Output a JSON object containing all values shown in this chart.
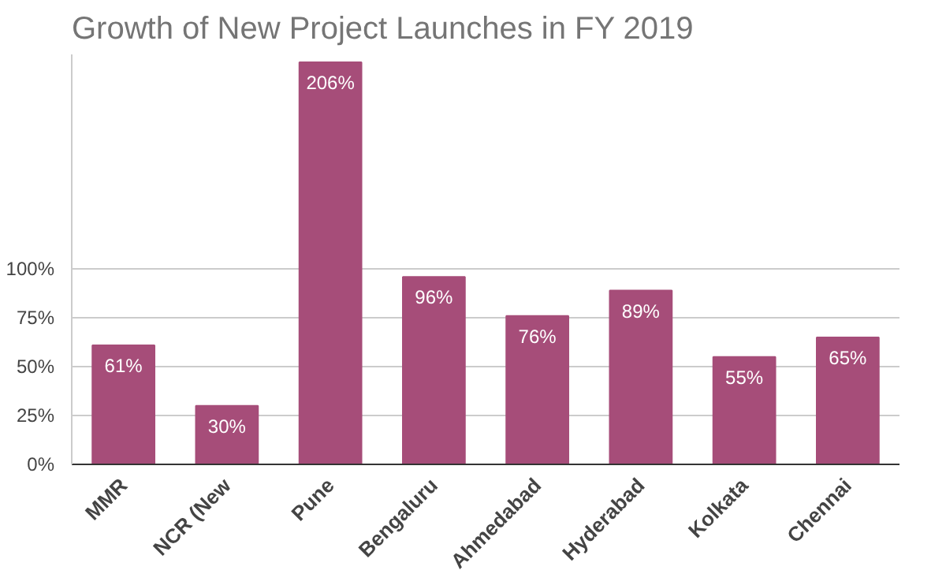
{
  "chart_data": {
    "type": "bar",
    "title": "Growth of New Project Launches in FY 2019",
    "categories": [
      "MMR",
      "NCR (New",
      "Pune",
      "Bengaluru",
      "Ahmedabad",
      "Hyderabad",
      "Kolkata",
      "Chennai"
    ],
    "values": [
      61,
      30,
      206,
      96,
      76,
      89,
      55,
      65
    ],
    "value_labels": [
      "61%",
      "30%",
      "206%",
      "96%",
      "76%",
      "89%",
      "55%",
      "65%"
    ],
    "color": "#a64d79",
    "ylim": [
      0,
      210
    ],
    "yticks": [
      {
        "value": 0,
        "label": "0%"
      },
      {
        "value": 25,
        "label": "25%"
      },
      {
        "value": 50,
        "label": "50%"
      },
      {
        "value": 75,
        "label": "75%"
      },
      {
        "value": 100,
        "label": "100%"
      }
    ],
    "grid": "y"
  }
}
